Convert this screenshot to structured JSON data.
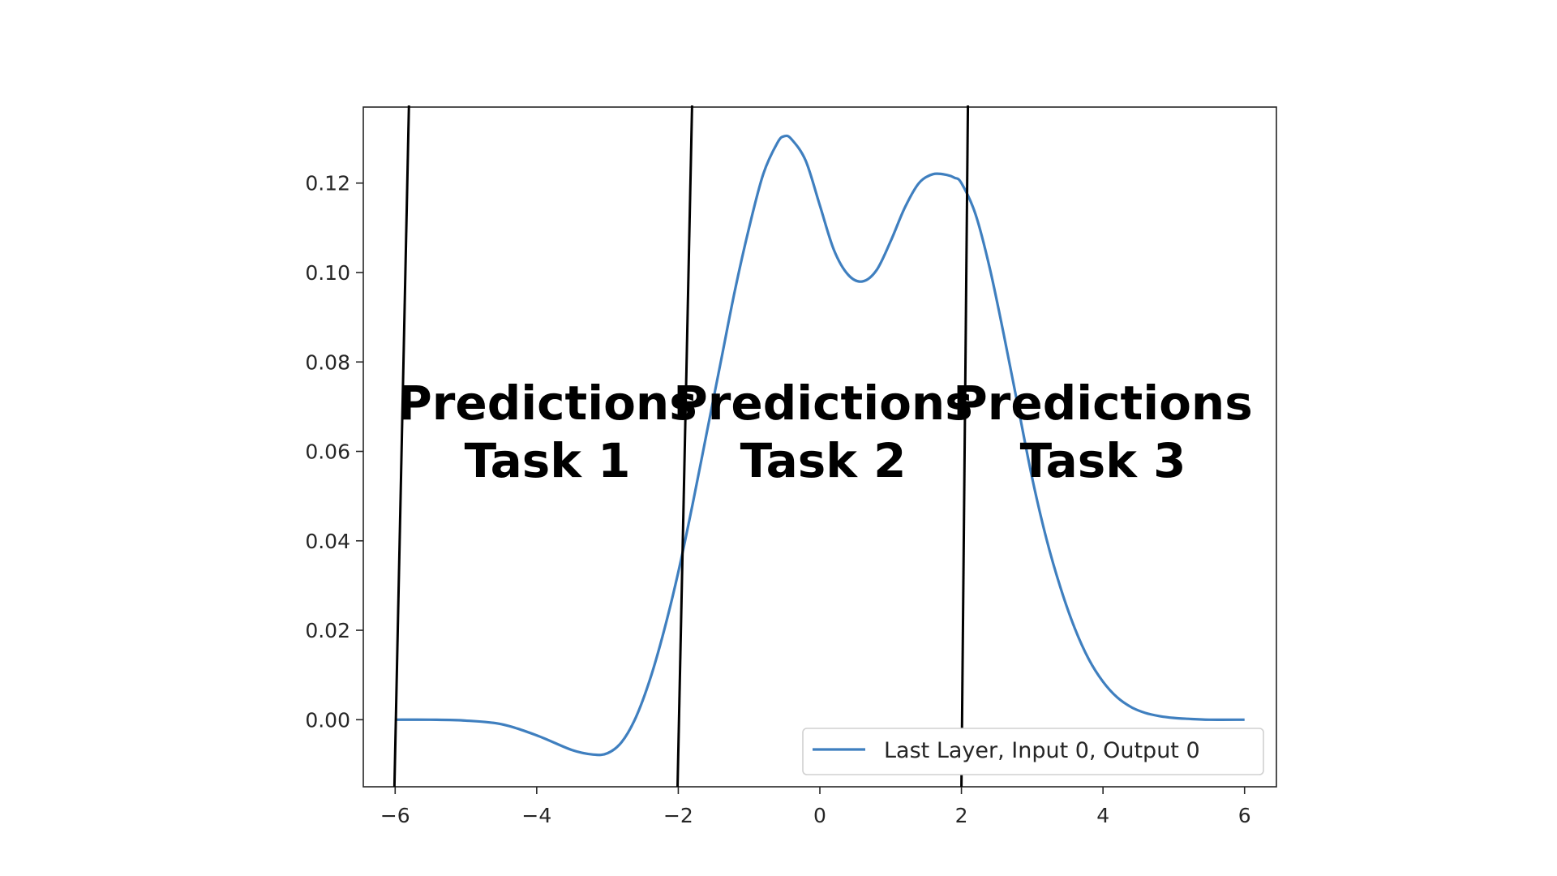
{
  "chart_data": {
    "type": "line",
    "title": "",
    "xlabel": "",
    "ylabel": "",
    "xlim": [
      -6.45,
      6.45
    ],
    "ylim": [
      -0.015,
      0.137
    ],
    "xticks": [
      -6,
      -4,
      -2,
      0,
      2,
      4,
      6
    ],
    "xtick_labels": [
      "−6",
      "−4",
      "−2",
      "0",
      "2",
      "4",
      "6"
    ],
    "yticks": [
      0.0,
      0.02,
      0.04,
      0.06,
      0.08,
      0.1,
      0.12
    ],
    "ytick_labels": [
      "0.00",
      "0.02",
      "0.04",
      "0.06",
      "0.08",
      "0.10",
      "0.12"
    ],
    "grid": false,
    "legend": {
      "placement": "lower-right",
      "entries": [
        "Last Layer, Input 0, Output 0"
      ]
    },
    "series": [
      {
        "name": "Last Layer, Input 0, Output 0",
        "color": "#3f7fbf",
        "x": [
          -6,
          -5.5,
          -5,
          -4.5,
          -4,
          -3.5,
          -3.2,
          -3,
          -2.8,
          -2.6,
          -2.4,
          -2.2,
          -2,
          -1.8,
          -1.6,
          -1.4,
          -1.2,
          -1,
          -0.8,
          -0.6,
          -0.5,
          -0.4,
          -0.2,
          0,
          0.2,
          0.4,
          0.6,
          0.8,
          1,
          1.2,
          1.4,
          1.6,
          1.8,
          1.9,
          2,
          2.2,
          2.4,
          2.6,
          2.8,
          3,
          3.2,
          3.4,
          3.6,
          3.8,
          4,
          4.2,
          4.4,
          4.6,
          4.8,
          5,
          5.2,
          5.5,
          6
        ],
        "values": [
          0.0,
          0.0,
          -0.0002,
          -0.001,
          -0.0035,
          -0.0068,
          -0.0078,
          -0.0075,
          -0.005,
          0.0005,
          0.009,
          0.02,
          0.033,
          0.048,
          0.064,
          0.08,
          0.096,
          0.11,
          0.122,
          0.129,
          0.1305,
          0.1298,
          0.125,
          0.115,
          0.105,
          0.0995,
          0.098,
          0.1005,
          0.107,
          0.1145,
          0.12,
          0.122,
          0.1218,
          0.1212,
          0.12,
          0.113,
          0.101,
          0.086,
          0.07,
          0.054,
          0.0405,
          0.0295,
          0.0205,
          0.0135,
          0.0085,
          0.005,
          0.0028,
          0.0015,
          0.0008,
          0.0004,
          0.0002,
          0.0,
          0.0
        ]
      }
    ],
    "vertical_lines": [
      -6,
      -2,
      2
    ],
    "annotations": [
      {
        "line1": "Predictions",
        "line2": "Task 1"
      },
      {
        "line1": "Predictions",
        "line2": "Task 2"
      },
      {
        "line1": "Predictions",
        "line2": "Task 3"
      }
    ]
  }
}
